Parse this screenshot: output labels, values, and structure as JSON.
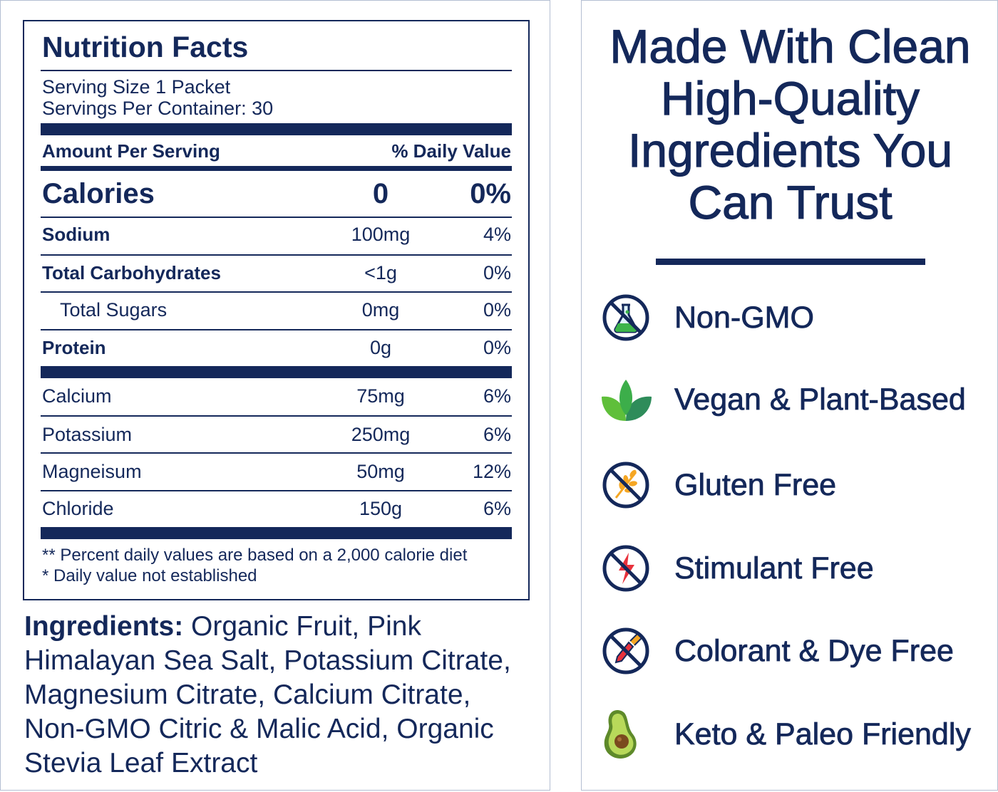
{
  "nutrition": {
    "title": "Nutrition Facts",
    "serving_size": "Serving Size 1 Packet",
    "servings_per_container": "Servings Per Container: 30",
    "amount_header": "Amount Per Serving",
    "dv_header": "% Daily Value",
    "calories": {
      "label": "Calories",
      "amount": "0",
      "dv": "0%"
    },
    "rows": [
      {
        "label": "Sodium",
        "amount": "100mg",
        "dv": "4%"
      },
      {
        "label": "Total Carbohydrates",
        "amount": "<1g",
        "dv": "0%"
      },
      {
        "label": "Total Sugars",
        "amount": "0mg",
        "dv": "0%"
      },
      {
        "label": "Protein",
        "amount": "0g",
        "dv": "0%"
      },
      {
        "label": "Calcium",
        "amount": "75mg",
        "dv": "6%"
      },
      {
        "label": "Potassium",
        "amount": "250mg",
        "dv": "6%"
      },
      {
        "label": "Magneisum",
        "amount": "50mg",
        "dv": "12%"
      },
      {
        "label": "Chloride",
        "amount": "150g",
        "dv": "6%"
      }
    ],
    "footnote_1": "** Percent daily values are based on a 2,000 calorie diet",
    "footnote_2": "* Daily value not established"
  },
  "ingredients": {
    "label": "Ingredients:",
    "text": "Organic Fruit,  Pink Himalayan Sea Salt, Potassium Citrate, Magnesium Citrate, Calcium Citrate, Non-GMO Citric & Malic Acid, Organic Stevia Leaf Extract"
  },
  "headline": {
    "line1": "Made With Clean",
    "line2": "High-Quality",
    "line3": "Ingredients You",
    "line4": "Can Trust"
  },
  "features": [
    {
      "label": "Non-GMO",
      "icon": "flask-no-icon"
    },
    {
      "label": "Vegan & Plant-Based",
      "icon": "leaves-icon"
    },
    {
      "label": "Gluten Free",
      "icon": "wheat-no-icon"
    },
    {
      "label": "Stimulant Free",
      "icon": "lightning-no-icon"
    },
    {
      "label": "Colorant & Dye Free",
      "icon": "dropper-no-icon"
    },
    {
      "label": "Keto & Paleo Friendly",
      "icon": "avocado-icon"
    }
  ],
  "colors": {
    "navy": "#14285a",
    "green": "#3cb44a",
    "orange": "#f5a623",
    "red": "#e8323c"
  }
}
